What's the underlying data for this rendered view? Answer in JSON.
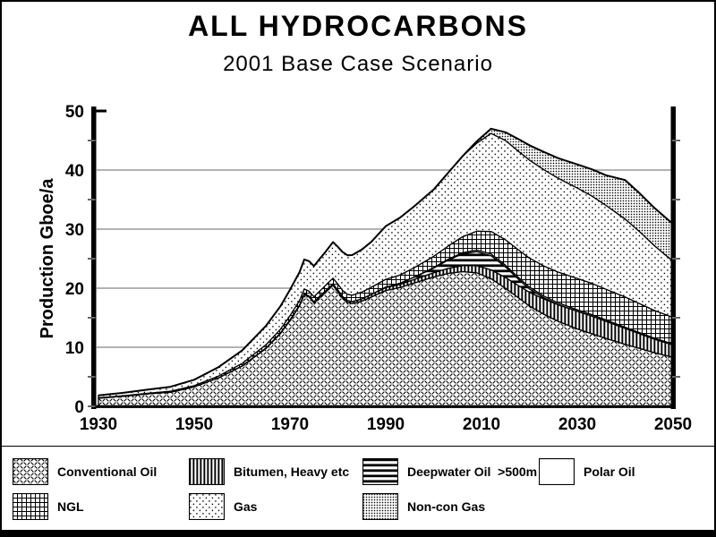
{
  "page": {
    "title": "ALL HYDROCARBONS",
    "subtitle": "2001 Base Case Scenario"
  },
  "colors": {
    "background": "#ffffff",
    "ink": "#000000",
    "gridline": "#999999",
    "tick": "#666666"
  },
  "chart_data": {
    "type": "area",
    "stacked": true,
    "title": "ALL HYDROCARBONS",
    "subtitle": "2001 Base Case Scenario",
    "xlabel": "",
    "ylabel": "Production Gboe/a",
    "xlim": [
      1930,
      2050
    ],
    "ylim": [
      0,
      50
    ],
    "x_ticks": [
      1930,
      1950,
      1970,
      1990,
      2010,
      2030,
      2050
    ],
    "y_ticks": [
      0,
      10,
      20,
      30,
      40,
      50
    ],
    "y_minor_ticks": [
      5,
      15,
      25,
      35,
      45
    ],
    "grid_values": [
      10,
      20,
      30,
      40
    ],
    "grid": true,
    "legend_position": "bottom",
    "x": [
      1930,
      1935,
      1940,
      1945,
      1950,
      1955,
      1960,
      1965,
      1968,
      1970,
      1972,
      1973,
      1974,
      1975,
      1976,
      1977,
      1978,
      1979,
      1980,
      1981,
      1982,
      1983,
      1985,
      1987,
      1990,
      1993,
      1996,
      2000,
      2003,
      2006,
      2009,
      2012,
      2015,
      2018,
      2020,
      2023,
      2026,
      2030,
      2033,
      2036,
      2040,
      2043,
      2046,
      2050
    ],
    "series": [
      {
        "name": "Conventional Oil",
        "pattern": "diagonal-weave",
        "values": [
          1.4,
          1.7,
          2.1,
          2.4,
          3.3,
          4.8,
          6.8,
          9.8,
          12.3,
          14.5,
          17.0,
          18.9,
          18.5,
          17.5,
          18.3,
          19.0,
          19.8,
          20.5,
          19.4,
          18.3,
          17.6,
          17.4,
          17.8,
          18.5,
          19.6,
          20.1,
          20.9,
          21.9,
          22.5,
          22.8,
          22.6,
          21.6,
          20.0,
          18.2,
          17.0,
          15.6,
          14.4,
          13.1,
          12.3,
          11.5,
          10.5,
          9.8,
          9.1,
          8.3
        ]
      },
      {
        "name": "Bitumen, Heavy etc",
        "pattern": "vertical-stripes",
        "values": [
          0,
          0,
          0,
          0,
          0,
          0,
          0.05,
          0.1,
          0.12,
          0.15,
          0.17,
          0.18,
          0.18,
          0.2,
          0.2,
          0.22,
          0.23,
          0.25,
          0.3,
          0.3,
          0.32,
          0.33,
          0.4,
          0.45,
          0.5,
          0.55,
          0.6,
          0.7,
          0.85,
          1.0,
          1.2,
          1.5,
          1.8,
          2.1,
          2.3,
          2.6,
          2.8,
          3.0,
          3.0,
          2.9,
          2.7,
          2.5,
          2.3,
          2.1
        ]
      },
      {
        "name": "Deepwater Oil  >500m",
        "pattern": "horizontal-stripes",
        "values": [
          0,
          0,
          0,
          0,
          0,
          0,
          0,
          0,
          0,
          0,
          0,
          0,
          0,
          0,
          0,
          0,
          0,
          0,
          0,
          0,
          0,
          0,
          0,
          0,
          0.1,
          0.2,
          0.4,
          0.8,
          1.4,
          2.0,
          2.4,
          2.4,
          1.8,
          1.0,
          0.6,
          0.2,
          0.05,
          0,
          0,
          0,
          0,
          0,
          0,
          0
        ]
      },
      {
        "name": "Polar Oil",
        "pattern": "plain-white",
        "values": [
          0,
          0,
          0,
          0,
          0,
          0,
          0,
          0,
          0,
          0,
          0,
          0,
          0,
          0,
          0,
          0,
          0,
          0,
          0,
          0,
          0,
          0,
          0,
          0,
          0,
          0,
          0,
          0.1,
          0.15,
          0.2,
          0.25,
          0.3,
          0.3,
          0.3,
          0.3,
          0.28,
          0.27,
          0.25,
          0.24,
          0.22,
          0.2,
          0.19,
          0.17,
          0.15
        ]
      },
      {
        "name": "NGL",
        "pattern": "grid-crosshatch",
        "values": [
          0.05,
          0.07,
          0.1,
          0.15,
          0.2,
          0.3,
          0.4,
          0.55,
          0.62,
          0.7,
          0.75,
          0.78,
          0.8,
          0.85,
          0.87,
          0.9,
          0.93,
          0.95,
          1.0,
          1.02,
          1.05,
          1.08,
          1.15,
          1.2,
          1.3,
          1.4,
          1.6,
          1.9,
          2.2,
          2.7,
          3.2,
          3.8,
          4.3,
          4.7,
          4.9,
          5.1,
          5.2,
          5.3,
          5.3,
          5.2,
          5.1,
          4.9,
          4.7,
          4.5
        ]
      },
      {
        "name": "Gas",
        "pattern": "sparse-dots",
        "values": [
          0.4,
          0.5,
          0.6,
          0.75,
          1.0,
          1.5,
          2.2,
          3.2,
          3.9,
          4.4,
          4.8,
          5.0,
          5.1,
          5.2,
          5.4,
          5.6,
          5.8,
          6.1,
          6.3,
          6.5,
          6.6,
          6.8,
          7.2,
          7.7,
          9.0,
          9.7,
          10.4,
          11.3,
          12.4,
          13.6,
          14.9,
          16.6,
          16.8,
          16.7,
          16.6,
          16.3,
          15.9,
          15.3,
          14.8,
          14.2,
          13.2,
          12.2,
          11.0,
          9.5
        ]
      },
      {
        "name": "Non-con Gas",
        "pattern": "dense-dots",
        "values": [
          0,
          0,
          0,
          0,
          0,
          0,
          0,
          0,
          0,
          0,
          0,
          0,
          0,
          0,
          0,
          0,
          0,
          0,
          0,
          0,
          0,
          0,
          0,
          0,
          0,
          0,
          0,
          0,
          0,
          0,
          0.3,
          0.8,
          1.4,
          2.1,
          2.5,
          3.0,
          3.4,
          4.0,
          4.5,
          5.1,
          6.6,
          6.5,
          6.4,
          6.3
        ]
      }
    ]
  }
}
